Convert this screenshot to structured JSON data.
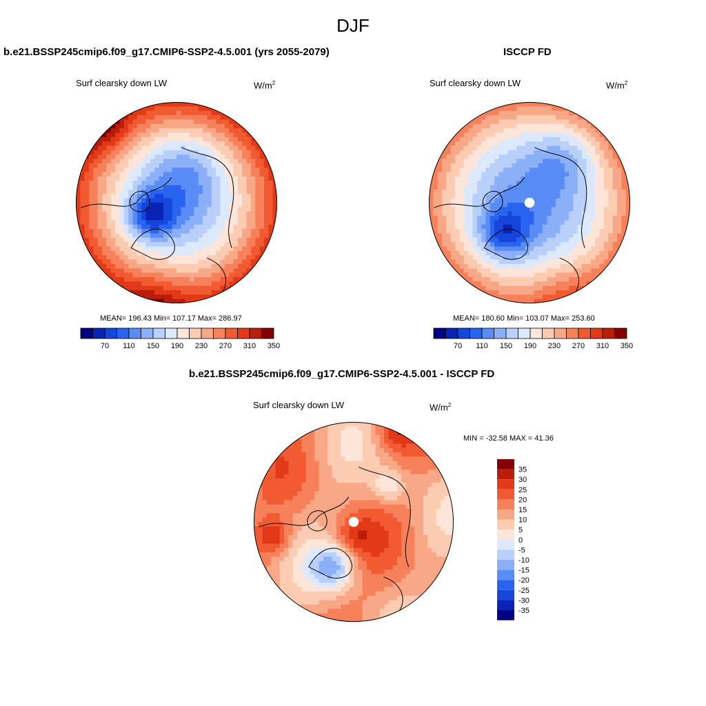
{
  "season": "DJF",
  "colors": {
    "abs_palette": [
      "#000080",
      "#0a23b4",
      "#1446dc",
      "#2864f0",
      "#5a8cf5",
      "#8cb0f8",
      "#b9d0fb",
      "#dce9fd",
      "#fde6d9",
      "#fbcbb2",
      "#f9a887",
      "#f6815a",
      "#f25a32",
      "#e23a18",
      "#b91e0a",
      "#830000"
    ],
    "diff_palette": [
      "#000080",
      "#0a23b4",
      "#1446dc",
      "#2864f0",
      "#5a8cf5",
      "#8cb0f8",
      "#b9d0fb",
      "#dce9fd",
      "#fde6d9",
      "#fbcbb2",
      "#f9a887",
      "#f6815a",
      "#f25a32",
      "#e23a18",
      "#b91e0a",
      "#830000"
    ],
    "coastline": "#000000"
  },
  "chart_data": [
    {
      "type": "heatmap",
      "projection": "north-polar-stereographic",
      "title": "b.e21.BSSP245cmip6.f09_g17.CMIP6-SSP2-4.5.001 (yrs 2055-2079)",
      "variable": "Surf clearsky down LW",
      "units": "W/m",
      "units_exponent": "2",
      "stats": "MEAN= 196.43  Min= 107.17  Max= 286.97",
      "mean": 196.43,
      "min": 107.17,
      "max": 286.97,
      "colorbar": {
        "levels": [
          50,
          70,
          90,
          110,
          130,
          150,
          170,
          190,
          210,
          230,
          250,
          270,
          290,
          310,
          330,
          350
        ],
        "tick_labels": [
          "70",
          "110",
          "150",
          "190",
          "230",
          "270",
          "310",
          "350"
        ]
      },
      "pole_missing": false
    },
    {
      "type": "heatmap",
      "projection": "north-polar-stereographic",
      "title": "ISCCP FD",
      "variable": "Surf clearsky down LW",
      "units": "W/m",
      "units_exponent": "2",
      "stats": "MEAN= 180.60  Min= 103.07  Max= 253.60",
      "mean": 180.6,
      "min": 103.07,
      "max": 253.6,
      "colorbar": {
        "levels": [
          50,
          70,
          90,
          110,
          130,
          150,
          170,
          190,
          210,
          230,
          250,
          270,
          290,
          310,
          330,
          350
        ],
        "tick_labels": [
          "70",
          "110",
          "150",
          "190",
          "230",
          "270",
          "310",
          "350"
        ]
      },
      "pole_missing": true
    },
    {
      "type": "heatmap",
      "projection": "north-polar-stereographic",
      "title": "b.e21.BSSP245cmip6.f09_g17.CMIP6-SSP2-4.5.001 - ISCCP FD",
      "variable": "Surf clearsky down LW",
      "units": "W/m",
      "units_exponent": "2",
      "stats": "MIN = -32.58 MAX =  41.36",
      "min": -32.58,
      "max": 41.36,
      "colorbar": {
        "orientation": "vertical",
        "levels": [
          -40,
          -35,
          -30,
          -25,
          -20,
          -15,
          -10,
          -5,
          0,
          5,
          10,
          15,
          20,
          25,
          30,
          35
        ],
        "tick_labels": [
          "35",
          "30",
          "25",
          "20",
          "15",
          "10",
          "5",
          "0",
          "-5",
          "-10",
          "-15",
          "-20",
          "-25",
          "-30",
          "-35"
        ]
      },
      "pole_missing": true
    }
  ]
}
